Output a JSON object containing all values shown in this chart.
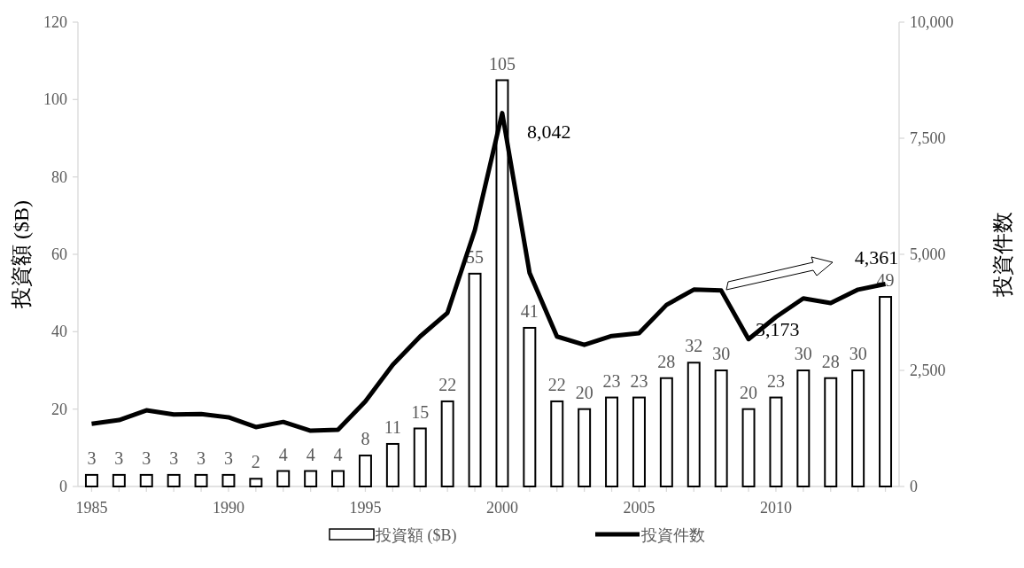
{
  "chart_data": {
    "type": "bar",
    "x": [
      1985,
      1986,
      1987,
      1988,
      1989,
      1990,
      1991,
      1992,
      1993,
      1994,
      1995,
      1996,
      1997,
      1998,
      1999,
      2000,
      2001,
      2002,
      2003,
      2004,
      2005,
      2006,
      2007,
      2008,
      2009,
      2010,
      2011,
      2012,
      2013,
      2014
    ],
    "xlim": [
      1984.5,
      2014.5
    ],
    "xticks": [
      1985,
      1990,
      1995,
      2000,
      2005,
      2010
    ],
    "ylabel": "投資額 ($B)",
    "y2label": "投資件数",
    "ylim": [
      0,
      120
    ],
    "yticks": [
      0,
      20,
      40,
      60,
      80,
      100,
      120
    ],
    "y2lim": [
      0,
      10000
    ],
    "y2ticks": [
      0,
      {
        "value": 2500,
        "label": "2,500"
      },
      {
        "value": 5000,
        "label": "5,000"
      },
      {
        "value": 7500,
        "label": "7,500"
      },
      {
        "value": 10000,
        "label": "10,000"
      }
    ],
    "series": [
      {
        "name": "投資額 ($B)",
        "color": "#ffffff",
        "data_labels": true,
        "values": [
          3,
          3,
          3,
          3,
          3,
          3,
          2,
          4,
          4,
          4,
          8,
          11,
          15,
          22,
          55,
          105,
          41,
          22,
          20,
          23,
          23,
          28,
          32,
          30,
          20,
          23,
          30,
          28,
          30,
          49
        ]
      },
      {
        "name": "投資件数",
        "type": "line",
        "axis": "y2",
        "color": "#000000",
        "values": [
          1350,
          1430,
          1640,
          1550,
          1560,
          1490,
          1280,
          1390,
          1200,
          1220,
          1830,
          2620,
          3230,
          3740,
          5520,
          8042,
          4600,
          3230,
          3050,
          3240,
          3300,
          3910,
          4240,
          4220,
          3173,
          3650,
          4050,
          3950,
          4240,
          4361
        ],
        "value_labels": [
          null,
          null,
          null,
          null,
          null,
          null,
          null,
          null,
          null,
          null,
          null,
          null,
          null,
          null,
          null,
          "8,042",
          null,
          null,
          null,
          null,
          null,
          null,
          null,
          null,
          "3,173",
          null,
          null,
          null,
          null,
          "4,361"
        ]
      }
    ],
    "legend": "bottom",
    "grid": false
  }
}
